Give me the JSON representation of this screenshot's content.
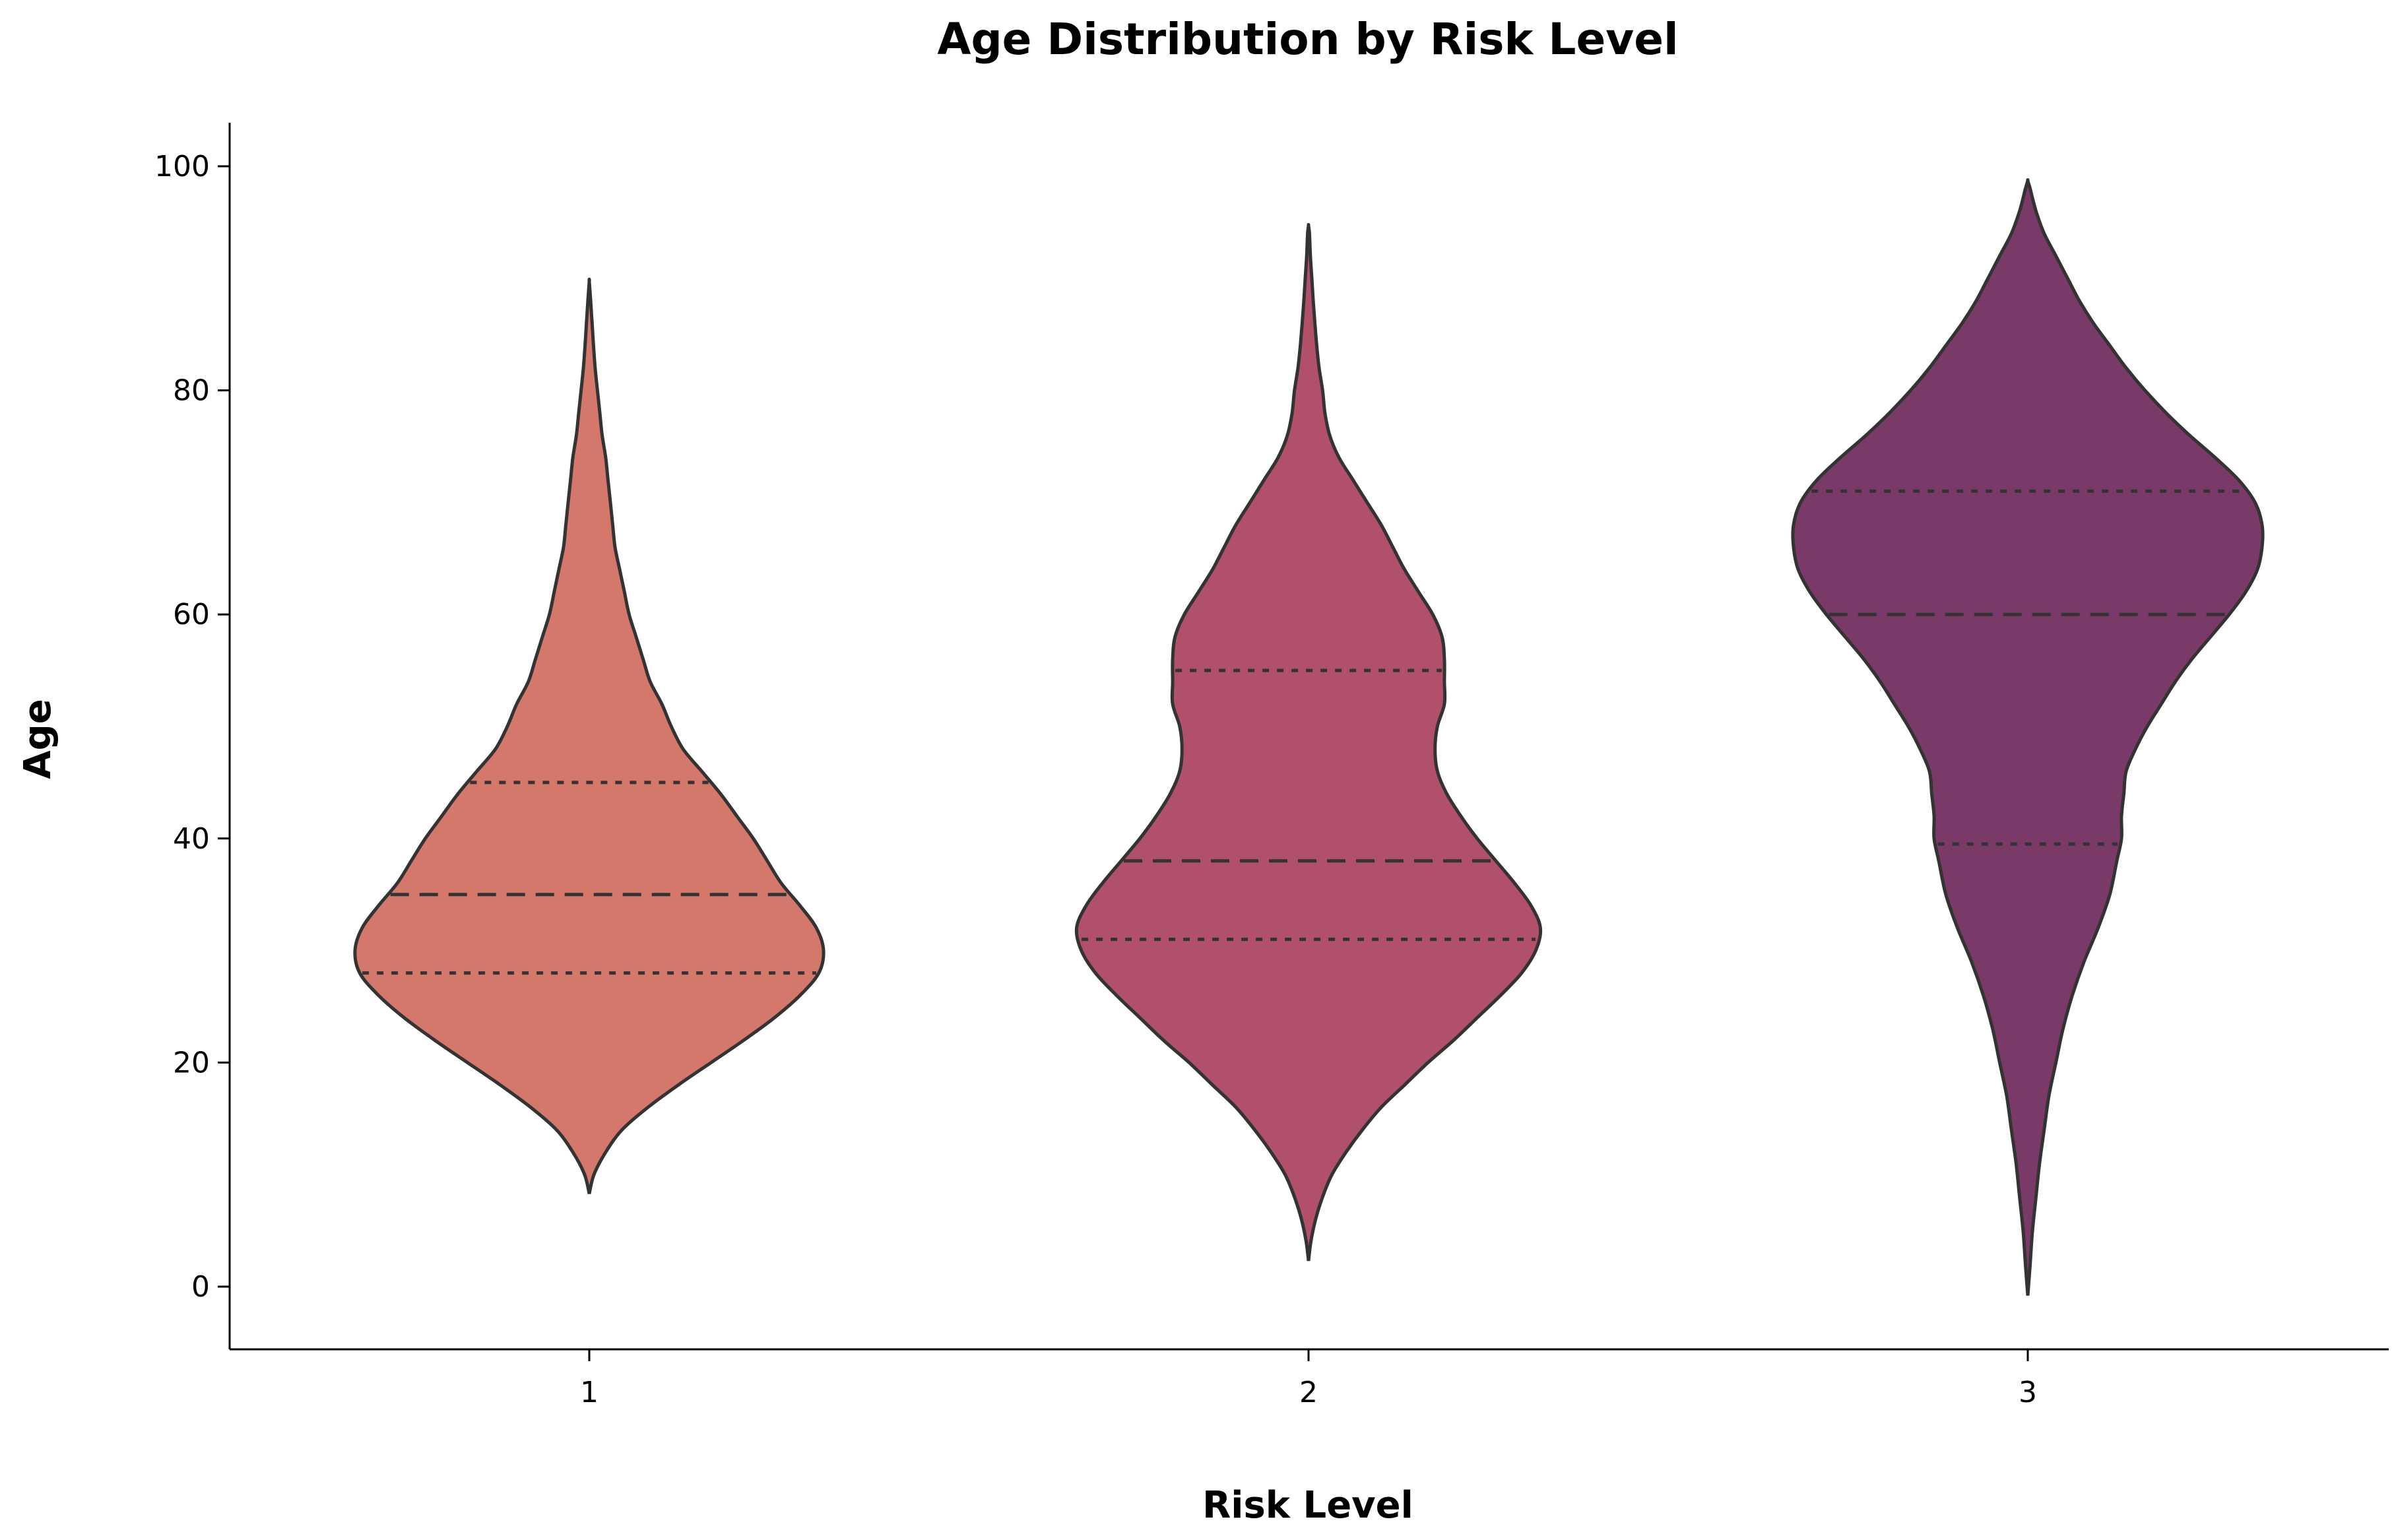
{
  "chart_data": {
    "type": "violin",
    "title": "Age Distribution by Risk Level",
    "xlabel": "Risk Level",
    "ylabel": "Age",
    "categories": [
      "1",
      "2",
      "3"
    ],
    "ylim": [
      -6,
      104
    ],
    "yticks": [
      0,
      20,
      40,
      60,
      80,
      100
    ],
    "grid": false,
    "inner": "quartile",
    "colors": [
      "#D4786C",
      "#B0506A",
      "#7A3A68"
    ],
    "series": [
      {
        "category": "1",
        "min": 8.3,
        "max": 89.7,
        "q1": 28,
        "median": 35,
        "q3": 45,
        "profile": [
          [
            8.3,
            0
          ],
          [
            10,
            0.02
          ],
          [
            12,
            0.07
          ],
          [
            14,
            0.14
          ],
          [
            16,
            0.25
          ],
          [
            18,
            0.38
          ],
          [
            20,
            0.52
          ],
          [
            22,
            0.66
          ],
          [
            24,
            0.79
          ],
          [
            26,
            0.9
          ],
          [
            28,
            0.98
          ],
          [
            30,
            1.0
          ],
          [
            32,
            0.97
          ],
          [
            34,
            0.9
          ],
          [
            36,
            0.82
          ],
          [
            38,
            0.76
          ],
          [
            40,
            0.7
          ],
          [
            42,
            0.63
          ],
          [
            44,
            0.56
          ],
          [
            46,
            0.48
          ],
          [
            48,
            0.4
          ],
          [
            50,
            0.35
          ],
          [
            52,
            0.31
          ],
          [
            54,
            0.26
          ],
          [
            56,
            0.23
          ],
          [
            58,
            0.2
          ],
          [
            60,
            0.17
          ],
          [
            62,
            0.15
          ],
          [
            64,
            0.13
          ],
          [
            66,
            0.11
          ],
          [
            68,
            0.1
          ],
          [
            70,
            0.09
          ],
          [
            72,
            0.08
          ],
          [
            74,
            0.07
          ],
          [
            76,
            0.055
          ],
          [
            78,
            0.045
          ],
          [
            80,
            0.035
          ],
          [
            82,
            0.025
          ],
          [
            84,
            0.018
          ],
          [
            86,
            0.012
          ],
          [
            88,
            0.006
          ],
          [
            89.7,
            0
          ]
        ]
      },
      {
        "category": "2",
        "min": 2.3,
        "max": 94.7,
        "q1": 31,
        "median": 38,
        "q3": 55,
        "profile": [
          [
            2.3,
            0
          ],
          [
            4,
            0.01
          ],
          [
            6,
            0.03
          ],
          [
            8,
            0.06
          ],
          [
            10,
            0.1
          ],
          [
            12,
            0.16
          ],
          [
            14,
            0.23
          ],
          [
            16,
            0.31
          ],
          [
            18,
            0.41
          ],
          [
            20,
            0.51
          ],
          [
            22,
            0.62
          ],
          [
            24,
            0.72
          ],
          [
            26,
            0.82
          ],
          [
            28,
            0.91
          ],
          [
            30,
            0.97
          ],
          [
            32,
            0.99
          ],
          [
            34,
            0.95
          ],
          [
            36,
            0.88
          ],
          [
            38,
            0.8
          ],
          [
            40,
            0.72
          ],
          [
            42,
            0.65
          ],
          [
            44,
            0.59
          ],
          [
            46,
            0.55
          ],
          [
            48,
            0.54
          ],
          [
            50,
            0.55
          ],
          [
            52,
            0.58
          ],
          [
            54,
            0.58
          ],
          [
            56,
            0.58
          ],
          [
            58,
            0.57
          ],
          [
            60,
            0.53
          ],
          [
            62,
            0.47
          ],
          [
            64,
            0.41
          ],
          [
            66,
            0.36
          ],
          [
            68,
            0.31
          ],
          [
            70,
            0.25
          ],
          [
            72,
            0.19
          ],
          [
            74,
            0.13
          ],
          [
            76,
            0.09
          ],
          [
            78,
            0.07
          ],
          [
            80,
            0.06
          ],
          [
            82,
            0.045
          ],
          [
            84,
            0.035
          ],
          [
            86,
            0.027
          ],
          [
            88,
            0.02
          ],
          [
            90,
            0.014
          ],
          [
            92,
            0.008
          ],
          [
            94,
            0.004
          ],
          [
            94.7,
            0
          ]
        ]
      },
      {
        "category": "3",
        "min": -0.8,
        "max": 98.7,
        "q1": 39.5,
        "median": 60,
        "q3": 71,
        "profile": [
          [
            -0.8,
            0
          ],
          [
            2,
            0.01
          ],
          [
            5,
            0.02
          ],
          [
            8,
            0.035
          ],
          [
            11,
            0.05
          ],
          [
            14,
            0.07
          ],
          [
            17,
            0.09
          ],
          [
            20,
            0.12
          ],
          [
            23,
            0.15
          ],
          [
            26,
            0.19
          ],
          [
            29,
            0.24
          ],
          [
            32,
            0.3
          ],
          [
            35,
            0.35
          ],
          [
            38,
            0.38
          ],
          [
            40,
            0.4
          ],
          [
            42,
            0.4
          ],
          [
            44,
            0.41
          ],
          [
            46,
            0.42
          ],
          [
            48,
            0.46
          ],
          [
            50,
            0.51
          ],
          [
            52,
            0.57
          ],
          [
            54,
            0.63
          ],
          [
            56,
            0.7
          ],
          [
            58,
            0.78
          ],
          [
            60,
            0.86
          ],
          [
            62,
            0.93
          ],
          [
            64,
            0.98
          ],
          [
            66,
            1.0
          ],
          [
            68,
            1.0
          ],
          [
            70,
            0.97
          ],
          [
            72,
            0.9
          ],
          [
            74,
            0.8
          ],
          [
            76,
            0.69
          ],
          [
            78,
            0.59
          ],
          [
            80,
            0.5
          ],
          [
            82,
            0.42
          ],
          [
            84,
            0.35
          ],
          [
            86,
            0.28
          ],
          [
            88,
            0.22
          ],
          [
            90,
            0.17
          ],
          [
            92,
            0.12
          ],
          [
            94,
            0.07
          ],
          [
            96,
            0.035
          ],
          [
            98,
            0.01
          ],
          [
            98.7,
            0
          ]
        ]
      }
    ]
  }
}
